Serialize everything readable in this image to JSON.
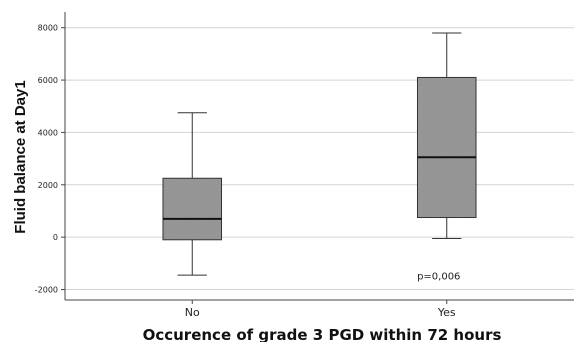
{
  "chart_data": {
    "type": "boxplot",
    "xlabel": "Occurence of grade 3 PGD within 72 hours",
    "ylabel": "Fluid balance at Day1",
    "ylim": [
      -2400,
      8600
    ],
    "yticks": [
      -2000,
      0,
      2000,
      4000,
      6000,
      8000
    ],
    "ytick_labels": [
      "-2000",
      "0",
      "2000",
      "4000",
      "6000",
      "8000"
    ],
    "grid": true,
    "categories": [
      "No",
      "Yes"
    ],
    "boxes": [
      {
        "whisker_low": -1450,
        "q1": -100,
        "median": 700,
        "q3": 2250,
        "whisker_high": 4750
      },
      {
        "whisker_low": -50,
        "q1": 750,
        "median": 3050,
        "q3": 6100,
        "whisker_high": 7800
      }
    ],
    "annotation": "p=0,006",
    "annotation_x": 1.5,
    "annotation_y": -1500,
    "colors": {
      "box_fill": "#999999",
      "box_stroke": "#333333",
      "gridline": "#d4d4d4",
      "axis": "#444444"
    }
  }
}
